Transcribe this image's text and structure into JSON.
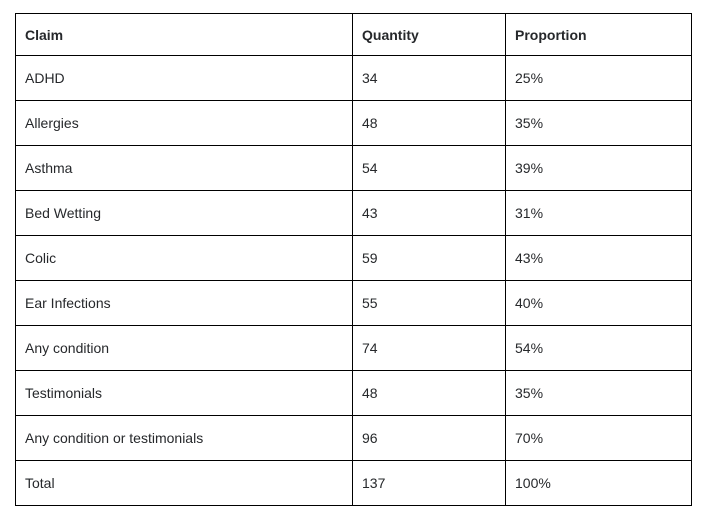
{
  "table": {
    "columns": [
      {
        "key": "claim",
        "label": "Claim"
      },
      {
        "key": "quantity",
        "label": "Quantity"
      },
      {
        "key": "proportion",
        "label": "Proportion"
      }
    ],
    "rows": [
      {
        "claim": "ADHD",
        "quantity": "34",
        "proportion": "25%"
      },
      {
        "claim": "Allergies",
        "quantity": "48",
        "proportion": "35%"
      },
      {
        "claim": "Asthma",
        "quantity": "54",
        "proportion": "39%"
      },
      {
        "claim": "Bed Wetting",
        "quantity": "43",
        "proportion": "31%"
      },
      {
        "claim": "Colic",
        "quantity": "59",
        "proportion": "43%"
      },
      {
        "claim": "Ear Infections",
        "quantity": "55",
        "proportion": "40%"
      },
      {
        "claim": "Any condition",
        "quantity": "74",
        "proportion": "54%"
      },
      {
        "claim": "Testimonials",
        "quantity": "48",
        "proportion": "35%"
      },
      {
        "claim": "Any condition or testimonials",
        "quantity": "96",
        "proportion": "70%"
      },
      {
        "claim": "Total",
        "quantity": "137",
        "proportion": "100%"
      }
    ]
  },
  "colors": {
    "background": "#ffffff",
    "border": "#000000",
    "text": "#26282b"
  }
}
